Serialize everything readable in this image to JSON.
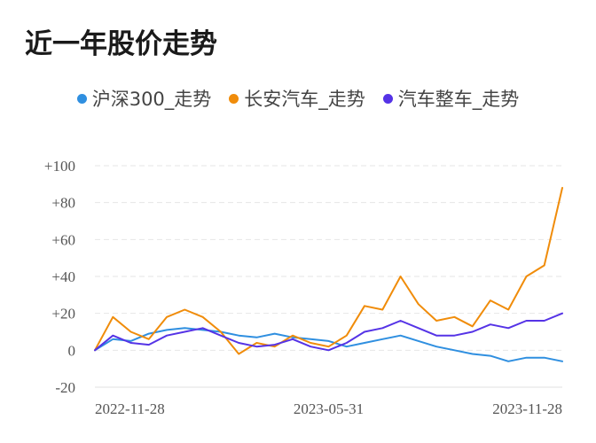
{
  "chart_data": {
    "type": "line",
    "title": "近一年股价走势",
    "y_ticks": [
      "+100",
      "+80",
      "+60",
      "+40",
      "+20",
      "0",
      "-20"
    ],
    "ylim": [
      -20,
      100
    ],
    "x_ticks": [
      "2022-11-28",
      "2023-05-31",
      "2023-11-28"
    ],
    "grid": true,
    "legend_position": "top",
    "x": [
      "2022-11-28",
      "2022-12-12",
      "2022-12-26",
      "2023-01-09",
      "2023-01-23",
      "2023-02-06",
      "2023-02-20",
      "2023-03-06",
      "2023-03-20",
      "2023-04-03",
      "2023-04-17",
      "2023-05-01",
      "2023-05-15",
      "2023-05-31",
      "2023-06-12",
      "2023-06-26",
      "2023-07-10",
      "2023-07-24",
      "2023-08-07",
      "2023-08-21",
      "2023-09-04",
      "2023-09-18",
      "2023-10-02",
      "2023-10-16",
      "2023-10-30",
      "2023-11-13",
      "2023-11-28"
    ],
    "series": [
      {
        "name": "沪深300_走势",
        "color": "#2f8fe0",
        "values": [
          0,
          6,
          5,
          9,
          11,
          12,
          11,
          10,
          8,
          7,
          9,
          7,
          6,
          5,
          2,
          4,
          6,
          8,
          5,
          2,
          0,
          -2,
          -3,
          -6,
          -4,
          -4,
          -6
        ]
      },
      {
        "name": "长安汽车_走势",
        "color": "#f08c0a",
        "values": [
          0,
          18,
          10,
          6,
          18,
          22,
          18,
          10,
          -2,
          4,
          2,
          8,
          4,
          2,
          8,
          24,
          22,
          40,
          25,
          16,
          18,
          13,
          27,
          22,
          40,
          46,
          88
        ]
      },
      {
        "name": "汽车整车_走势",
        "color": "#5533e6",
        "values": [
          0,
          8,
          4,
          3,
          8,
          10,
          12,
          8,
          4,
          2,
          3,
          6,
          2,
          0,
          4,
          10,
          12,
          16,
          12,
          8,
          8,
          10,
          14,
          12,
          16,
          16,
          20
        ]
      }
    ]
  }
}
